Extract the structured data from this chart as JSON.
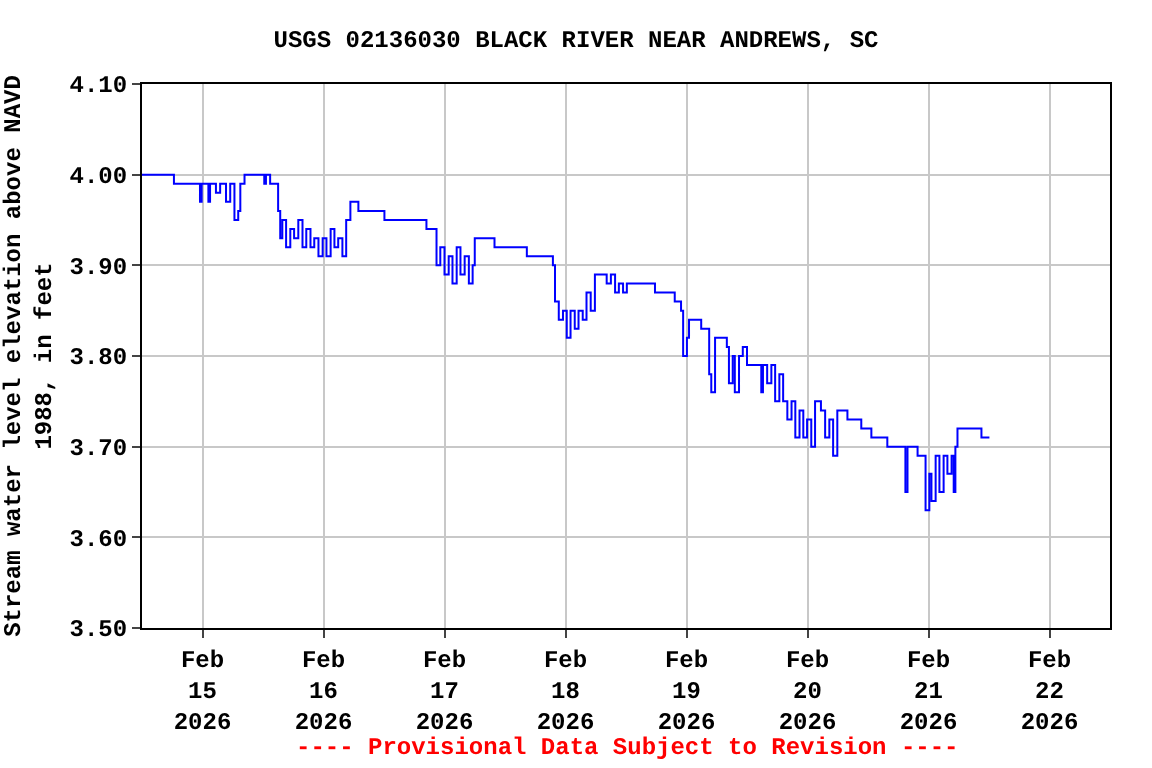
{
  "chart_data": {
    "type": "step",
    "title": "USGS 02136030 BLACK RIVER NEAR ANDREWS, SC",
    "ylabel": "Stream water level elevation above NAVD\n1988, in feet",
    "annotations": [
      "---- Provisional Data Subject to Revision ----"
    ],
    "x": [
      "2026-02-14T12:00",
      "2026-02-14T18:20",
      "2026-02-14T23:30",
      "2026-02-14T23:50",
      "2026-02-15T01:10",
      "2026-02-15T01:30",
      "2026-02-15T02:40",
      "2026-02-15T03:30",
      "2026-02-15T04:40",
      "2026-02-15T05:30",
      "2026-02-15T06:20",
      "2026-02-15T07:05",
      "2026-02-15T07:30",
      "2026-02-15T08:20",
      "2026-02-15T12:15",
      "2026-02-15T12:35",
      "2026-02-15T13:25",
      "2026-02-15T15:00",
      "2026-02-15T15:25",
      "2026-02-15T15:50",
      "2026-02-15T16:35",
      "2026-02-15T17:25",
      "2026-02-15T18:10",
      "2026-02-15T19:00",
      "2026-02-15T19:50",
      "2026-02-15T20:35",
      "2026-02-15T21:25",
      "2026-02-15T22:10",
      "2026-02-15T23:00",
      "2026-02-15T23:50",
      "2026-02-16T00:35",
      "2026-02-16T01:25",
      "2026-02-16T02:10",
      "2026-02-16T02:55",
      "2026-02-16T03:45",
      "2026-02-16T04:30",
      "2026-02-16T05:20",
      "2026-02-16T06:55",
      "2026-02-16T12:05",
      "2026-02-16T20:25",
      "2026-02-16T22:25",
      "2026-02-16T23:10",
      "2026-02-17T00:00",
      "2026-02-17T00:50",
      "2026-02-17T01:35",
      "2026-02-17T02:25",
      "2026-02-17T03:10",
      "2026-02-17T04:00",
      "2026-02-17T04:50",
      "2026-02-17T05:35",
      "2026-02-17T06:00",
      "2026-02-17T09:55",
      "2026-02-17T16:20",
      "2026-02-17T21:30",
      "2026-02-17T21:55",
      "2026-02-17T22:40",
      "2026-02-17T23:30",
      "2026-02-18T00:15",
      "2026-02-18T01:00",
      "2026-02-18T01:50",
      "2026-02-18T02:35",
      "2026-02-18T03:25",
      "2026-02-18T04:10",
      "2026-02-18T05:00",
      "2026-02-18T05:50",
      "2026-02-18T08:10",
      "2026-02-18T09:00",
      "2026-02-18T09:50",
      "2026-02-18T10:35",
      "2026-02-18T11:25",
      "2026-02-18T12:10",
      "2026-02-18T17:45",
      "2026-02-18T21:40",
      "2026-02-18T22:55",
      "2026-02-18T23:20",
      "2026-02-19T00:05",
      "2026-02-19T00:30",
      "2026-02-19T02:55",
      "2026-02-19T04:30",
      "2026-02-19T04:55",
      "2026-02-19T05:40",
      "2026-02-19T08:00",
      "2026-02-19T08:25",
      "2026-02-19T09:10",
      "2026-02-19T09:35",
      "2026-02-19T10:25",
      "2026-02-19T11:10",
      "2026-02-19T12:00",
      "2026-02-19T14:50",
      "2026-02-19T15:10",
      "2026-02-19T16:00",
      "2026-02-19T16:50",
      "2026-02-19T17:35",
      "2026-02-19T18:25",
      "2026-02-19T19:10",
      "2026-02-19T20:00",
      "2026-02-19T20:50",
      "2026-02-19T21:35",
      "2026-02-19T22:25",
      "2026-02-19T23:10",
      "2026-02-19T23:55",
      "2026-02-20T00:45",
      "2026-02-20T01:30",
      "2026-02-20T02:40",
      "2026-02-20T03:30",
      "2026-02-20T04:20",
      "2026-02-20T05:05",
      "2026-02-20T05:55",
      "2026-02-20T07:55",
      "2026-02-20T10:40",
      "2026-02-20T12:40",
      "2026-02-20T15:50",
      "2026-02-20T19:25",
      "2026-02-20T19:50",
      "2026-02-20T21:50",
      "2026-02-20T23:25",
      "2026-02-21T00:10",
      "2026-02-21T00:35",
      "2026-02-21T01:25",
      "2026-02-21T02:10",
      "2026-02-21T03:00",
      "2026-02-21T03:45",
      "2026-02-21T04:35",
      "2026-02-21T05:00",
      "2026-02-21T05:20",
      "2026-02-21T05:45",
      "2026-02-21T10:30",
      "2026-02-21T12:05"
    ],
    "series": [
      {
        "color": "#0000ff",
        "values": [
          4.0,
          3.99,
          3.97,
          3.99,
          3.97,
          3.99,
          3.98,
          3.99,
          3.97,
          3.99,
          3.95,
          3.96,
          3.99,
          4.0,
          3.99,
          4.0,
          3.99,
          3.96,
          3.93,
          3.95,
          3.92,
          3.94,
          3.93,
          3.95,
          3.92,
          3.94,
          3.92,
          3.93,
          3.91,
          3.93,
          3.91,
          3.94,
          3.92,
          3.93,
          3.91,
          3.95,
          3.97,
          3.96,
          3.95,
          3.94,
          3.9,
          3.92,
          3.89,
          3.91,
          3.88,
          3.92,
          3.89,
          3.91,
          3.88,
          3.9,
          3.93,
          3.92,
          3.91,
          3.9,
          3.86,
          3.84,
          3.85,
          3.82,
          3.85,
          3.83,
          3.85,
          3.84,
          3.87,
          3.85,
          3.89,
          3.88,
          3.89,
          3.87,
          3.88,
          3.87,
          3.88,
          3.87,
          3.86,
          3.85,
          3.8,
          3.82,
          3.84,
          3.83,
          3.78,
          3.76,
          3.82,
          3.81,
          3.77,
          3.8,
          3.76,
          3.8,
          3.81,
          3.79,
          3.76,
          3.79,
          3.77,
          3.79,
          3.75,
          3.78,
          3.75,
          3.73,
          3.75,
          3.71,
          3.74,
          3.71,
          3.73,
          3.7,
          3.75,
          3.74,
          3.71,
          3.73,
          3.69,
          3.74,
          3.73,
          3.72,
          3.71,
          3.7,
          3.65,
          3.7,
          3.69,
          3.63,
          3.67,
          3.64,
          3.69,
          3.65,
          3.69,
          3.67,
          3.69,
          3.65,
          3.7,
          3.72,
          3.71,
          3.71
        ]
      }
    ],
    "xlim": [
      "2026-02-14T12:00",
      "2026-02-22T12:00"
    ],
    "xticks": [
      {
        "value": "2026-02-15",
        "label": "Feb\n15\n2026"
      },
      {
        "value": "2026-02-16",
        "label": "Feb\n16\n2026"
      },
      {
        "value": "2026-02-17",
        "label": "Feb\n17\n2026"
      },
      {
        "value": "2026-02-18",
        "label": "Feb\n18\n2026"
      },
      {
        "value": "2026-02-19",
        "label": "Feb\n19\n2026"
      },
      {
        "value": "2026-02-20",
        "label": "Feb\n20\n2026"
      },
      {
        "value": "2026-02-21",
        "label": "Feb\n21\n2026"
      },
      {
        "value": "2026-02-22",
        "label": "Feb\n22\n2026"
      }
    ],
    "ylim": [
      3.5,
      4.1
    ],
    "yticks": [
      {
        "value": 3.5,
        "label": "3.50"
      },
      {
        "value": 3.6,
        "label": "3.60"
      },
      {
        "value": 3.7,
        "label": "3.70"
      },
      {
        "value": 3.8,
        "label": "3.80"
      },
      {
        "value": 3.9,
        "label": "3.90"
      },
      {
        "value": 4.0,
        "label": "4.00"
      },
      {
        "value": 4.1,
        "label": "4.10"
      }
    ],
    "grid": true,
    "marker": "none",
    "line_style": "solid"
  }
}
